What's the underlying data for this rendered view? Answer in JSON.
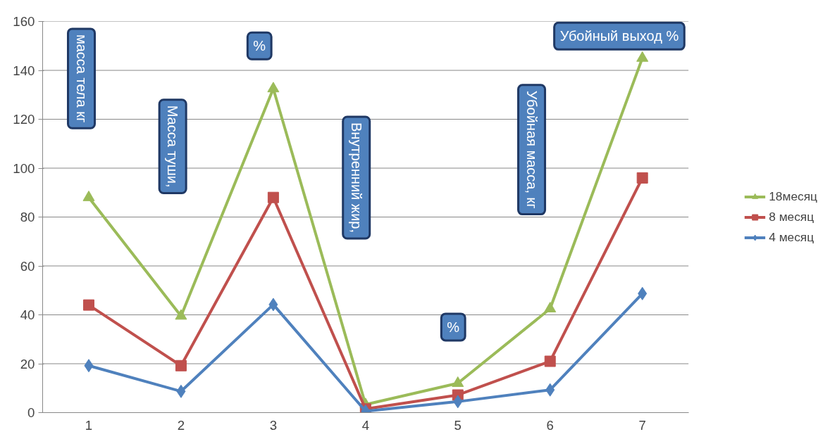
{
  "chart_data": {
    "type": "line",
    "categories": [
      "1",
      "2",
      "3",
      "4",
      "5",
      "6",
      "7"
    ],
    "series": [
      {
        "name": "18месяц",
        "color": "#9bbb59",
        "marker": "triangle",
        "values": [
          88,
          39.5,
          132.5,
          3.3,
          12,
          42.5,
          145
        ]
      },
      {
        "name": "8 месяц",
        "color": "#c0504d",
        "marker": "square",
        "values": [
          44,
          19.2,
          88,
          1.5,
          7.2,
          21,
          96
        ]
      },
      {
        "name": "4 месяц",
        "color": "#4f81bd",
        "marker": "diamond",
        "values": [
          19.2,
          8.7,
          44.2,
          0.6,
          4.5,
          9.3,
          48.7
        ]
      }
    ],
    "ylim": [
      0,
      160
    ],
    "yticks": [
      0,
      20,
      40,
      60,
      80,
      100,
      120,
      140,
      160
    ],
    "grid": "y",
    "legend": "right",
    "line_style": "solid",
    "annotations": [
      "масса тела кг",
      "Масса туши,",
      "%",
      "Внутренний жир,",
      "%",
      "Убойная масса, кг",
      "Убойный выход %"
    ]
  }
}
